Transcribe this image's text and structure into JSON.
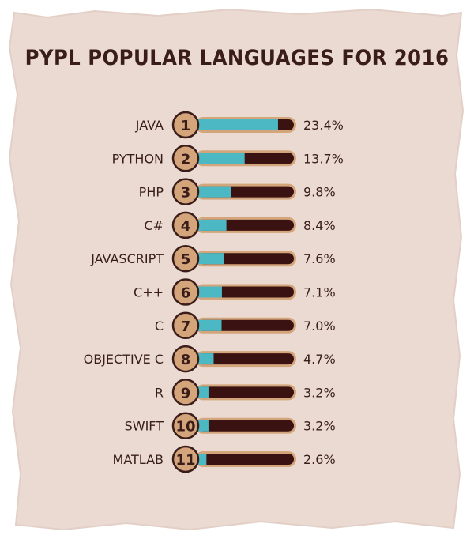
{
  "colors": {
    "parchment": "#eadad2",
    "parchment_edge": "#e2cfc6",
    "title": "#3a1d1a",
    "text": "#3a1d1a",
    "bar_track": "#3a1212",
    "bar_fill": "#4bb8c4",
    "bar_frame": "#d4a57b",
    "badge_fill": "#d4a57b",
    "badge_stroke": "#3a1d1a"
  },
  "chart_data": {
    "type": "bar",
    "orientation": "horizontal",
    "title": "PYPL POPULAR LANGUAGES FOR 2016",
    "categories": [
      "JAVA",
      "PYTHON",
      "PHP",
      "C#",
      "JAVASCRIPT",
      "C++",
      "C",
      "OBJECTIVE C",
      "R",
      "SWIFT",
      "MATLAB"
    ],
    "ranks": [
      "1",
      "2",
      "3",
      "4",
      "5",
      "6",
      "7",
      "8",
      "9",
      "10",
      "11"
    ],
    "values": [
      23.4,
      13.7,
      9.8,
      8.4,
      7.6,
      7.1,
      7.0,
      4.7,
      3.2,
      3.2,
      2.6
    ],
    "value_labels": [
      "23.4%",
      "13.7%",
      "9.8%",
      "8.4%",
      "7.6%",
      "7.1%",
      "7.0%",
      "4.7%",
      "3.2%",
      "3.2%",
      "2.6%"
    ],
    "unit": "%",
    "xlim": [
      0,
      28
    ],
    "grid": false,
    "legend": "none"
  }
}
